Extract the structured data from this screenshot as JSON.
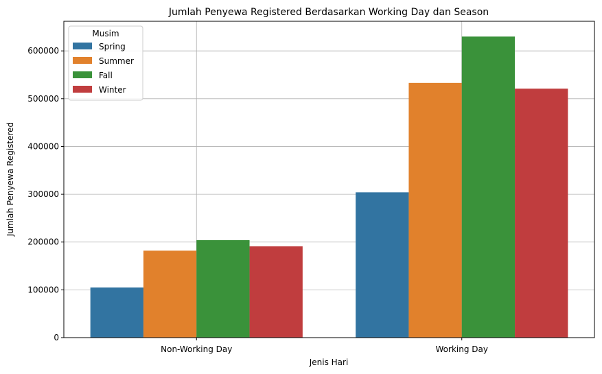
{
  "chart_data": {
    "type": "bar",
    "title": "Jumlah Penyewa Registered Berdasarkan Working Day dan Season",
    "xlabel": "Jenis Hari",
    "ylabel": "Jumlah Penyewa Registered",
    "categories": [
      "Non-Working Day",
      "Working Day"
    ],
    "series": [
      {
        "name": "Spring",
        "color": "#3274a1",
        "values": [
          105000,
          304000
        ]
      },
      {
        "name": "Summer",
        "color": "#e1812c",
        "values": [
          182000,
          533000
        ]
      },
      {
        "name": "Fall",
        "color": "#3a923a",
        "values": [
          204000,
          630000
        ]
      },
      {
        "name": "Winter",
        "color": "#c03d3e",
        "values": [
          191000,
          521000
        ]
      }
    ],
    "ylim": [
      0,
      662000
    ],
    "yticks": [
      0,
      100000,
      200000,
      300000,
      400000,
      500000,
      600000
    ],
    "ytick_labels": [
      "0",
      "100000",
      "200000",
      "300000",
      "400000",
      "500000",
      "600000"
    ],
    "grid": true,
    "legend": {
      "title": "Musim",
      "placement": "top-left"
    }
  }
}
